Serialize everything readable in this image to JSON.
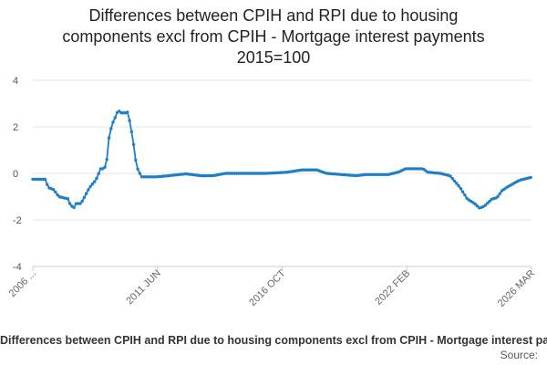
{
  "chart_data": {
    "type": "line",
    "title_lines": [
      "Differences between CPIH and RPI due to housing",
      "components excl from CPIH - Mortgage interest payments",
      "2015=100"
    ],
    "xlabel": "",
    "ylabel": "",
    "ylim": [
      -4,
      4
    ],
    "yticks": [
      -4,
      -2,
      0,
      2,
      4
    ],
    "xticks": [
      "2006 ...",
      "2011 JUN",
      "2016 OCT",
      "2022 FEB",
      "2026 MAR"
    ],
    "grid": true,
    "legend": "Differences between CPIH and RPI due to housing components excl from CPIH - Mortgage interest payments",
    "source": "Source:",
    "color": "#1f7ec6",
    "x_start_year": 2006.0,
    "x_end_year": 2026.2,
    "gaps": [
      [
        2014.95,
        2015.4
      ]
    ],
    "series": [
      {
        "name": "Differences between CPIH and RPI due to housing components excl from CPIH - Mortgage interest payments",
        "keyframes": [
          [
            2006.0,
            -0.25
          ],
          [
            2006.55,
            -0.25
          ],
          [
            2006.6,
            -0.6
          ],
          [
            2006.85,
            -0.7
          ],
          [
            2007.05,
            -1.0
          ],
          [
            2007.45,
            -1.1
          ],
          [
            2007.5,
            -1.3
          ],
          [
            2007.65,
            -1.5
          ],
          [
            2007.75,
            -1.3
          ],
          [
            2007.95,
            -1.3
          ],
          [
            2008.3,
            -0.6
          ],
          [
            2008.55,
            -0.3
          ],
          [
            2008.75,
            0.2
          ],
          [
            2008.9,
            0.2
          ],
          [
            2009.0,
            0.6
          ],
          [
            2009.1,
            1.7
          ],
          [
            2009.25,
            2.2
          ],
          [
            2009.4,
            2.55
          ],
          [
            2009.45,
            2.75
          ],
          [
            2009.55,
            2.6
          ],
          [
            2009.8,
            2.6
          ],
          [
            2009.85,
            2.65
          ],
          [
            2010.05,
            1.5
          ],
          [
            2010.2,
            0.3
          ],
          [
            2010.4,
            -0.15
          ],
          [
            2011.0,
            -0.15
          ],
          [
            2011.5,
            -0.1
          ],
          [
            2012.2,
            -0.02
          ],
          [
            2012.8,
            -0.1
          ],
          [
            2013.3,
            -0.1
          ],
          [
            2013.8,
            0.0
          ],
          [
            2014.9,
            0.0
          ],
          [
            2015.45,
            0.0
          ],
          [
            2016.3,
            0.05
          ],
          [
            2016.9,
            0.15
          ],
          [
            2017.5,
            0.15
          ],
          [
            2017.9,
            0.0
          ],
          [
            2018.5,
            -0.05
          ],
          [
            2019.1,
            -0.1
          ],
          [
            2019.5,
            -0.05
          ],
          [
            2020.4,
            -0.05
          ],
          [
            2020.8,
            0.05
          ],
          [
            2021.1,
            0.2
          ],
          [
            2021.8,
            0.2
          ],
          [
            2022.0,
            0.05
          ],
          [
            2022.5,
            0.0
          ],
          [
            2022.9,
            -0.1
          ],
          [
            2023.3,
            -0.6
          ],
          [
            2023.6,
            -1.1
          ],
          [
            2023.9,
            -1.3
          ],
          [
            2024.1,
            -1.5
          ],
          [
            2024.3,
            -1.4
          ],
          [
            2024.6,
            -1.1
          ],
          [
            2024.8,
            -1.05
          ],
          [
            2025.0,
            -0.75
          ],
          [
            2025.2,
            -0.6
          ],
          [
            2025.45,
            -0.45
          ],
          [
            2025.7,
            -0.3
          ],
          [
            2026.0,
            -0.22
          ],
          [
            2026.2,
            -0.17
          ]
        ]
      }
    ]
  }
}
